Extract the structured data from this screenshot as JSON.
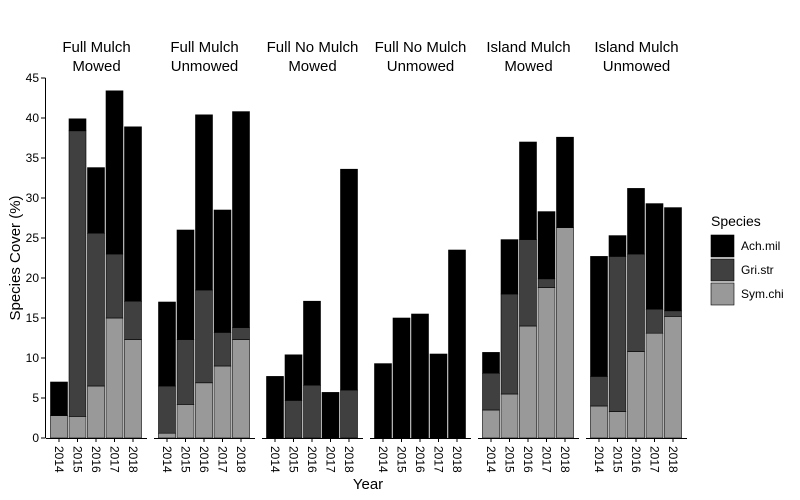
{
  "chart_data": {
    "type": "bar",
    "stacked": true,
    "xlabel": "Year",
    "ylabel": "Species Cover (%)",
    "ylim": [
      0,
      45
    ],
    "yticks": [
      0,
      5,
      10,
      15,
      20,
      25,
      30,
      35,
      40,
      45
    ],
    "categories": [
      "2014",
      "2015",
      "2016",
      "2017",
      "2018"
    ],
    "grid": false,
    "legend": {
      "title": "Species",
      "position": "right",
      "entries": [
        {
          "name": "Ach.mil",
          "color": "#000000"
        },
        {
          "name": "Gri.str",
          "color": "#404040"
        },
        {
          "name": "Sym.chi",
          "color": "#999999"
        }
      ]
    },
    "series_order": [
      "Sym.chi",
      "Gri.str",
      "Ach.mil"
    ],
    "facets": [
      {
        "title_lines": [
          "Full Mulch",
          "Mowed"
        ],
        "series": [
          {
            "name": "Sym.chi",
            "values": [
              2.8,
              2.7,
              6.5,
              15.0,
              12.3
            ]
          },
          {
            "name": "Gri.str",
            "values": [
              0,
              35.7,
              19.1,
              8.0,
              4.8
            ]
          },
          {
            "name": "Ach.mil",
            "values": [
              4.2,
              1.5,
              8.2,
              20.4,
              21.8
            ]
          }
        ]
      },
      {
        "title_lines": [
          "Full Mulch",
          "Unmowed"
        ],
        "series": [
          {
            "name": "Sym.chi",
            "values": [
              0.6,
              4.2,
              6.9,
              9.0,
              12.3
            ]
          },
          {
            "name": "Gri.str",
            "values": [
              5.9,
              8.1,
              11.6,
              4.2,
              1.5
            ]
          },
          {
            "name": "Ach.mil",
            "values": [
              10.5,
              13.7,
              21.9,
              15.3,
              27.0
            ]
          }
        ]
      },
      {
        "title_lines": [
          "Full No Mulch",
          "Mowed"
        ],
        "series": [
          {
            "name": "Sym.chi",
            "values": [
              0,
              0,
              0,
              0,
              0
            ]
          },
          {
            "name": "Gri.str",
            "values": [
              0,
              4.7,
              6.6,
              0,
              6.0
            ]
          },
          {
            "name": "Ach.mil",
            "values": [
              7.7,
              5.7,
              10.5,
              5.7,
              27.6
            ]
          }
        ]
      },
      {
        "title_lines": [
          "Full No Mulch",
          "Unmowed"
        ],
        "series": [
          {
            "name": "Sym.chi",
            "values": [
              0,
              0,
              0,
              0,
              0
            ]
          },
          {
            "name": "Gri.str",
            "values": [
              0,
              0,
              0,
              0,
              0
            ]
          },
          {
            "name": "Ach.mil",
            "values": [
              9.3,
              15.0,
              15.5,
              10.5,
              23.5
            ]
          }
        ]
      },
      {
        "title_lines": [
          "Island Mulch",
          "Mowed"
        ],
        "series": [
          {
            "name": "Sym.chi",
            "values": [
              3.5,
              5.5,
              14.0,
              18.8,
              26.3
            ]
          },
          {
            "name": "Gri.str",
            "values": [
              4.6,
              12.5,
              10.8,
              1.1,
              0
            ]
          },
          {
            "name": "Ach.mil",
            "values": [
              2.6,
              6.8,
              12.2,
              8.4,
              11.3
            ]
          }
        ]
      },
      {
        "title_lines": [
          "Island Mulch",
          "Unmowed"
        ],
        "series": [
          {
            "name": "Sym.chi",
            "values": [
              4.0,
              3.3,
              10.8,
              13.1,
              15.2
            ]
          },
          {
            "name": "Gri.str",
            "values": [
              3.7,
              19.4,
              12.2,
              3.0,
              0.7
            ]
          },
          {
            "name": "Ach.mil",
            "values": [
              15.0,
              2.6,
              8.2,
              13.2,
              12.9
            ]
          }
        ]
      }
    ]
  }
}
